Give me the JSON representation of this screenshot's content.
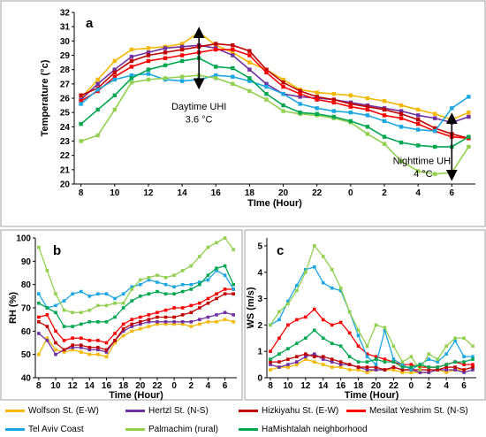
{
  "chart_data": [
    {
      "panel": "a",
      "type": "line",
      "ylabel": "Temperature (°c)",
      "xlabel": "TIme (Hour)",
      "ylim": [
        20,
        32
      ],
      "yticks": [
        20,
        21,
        22,
        23,
        24,
        25,
        26,
        27,
        28,
        29,
        30,
        31,
        32
      ],
      "xtick_labels": [
        "8",
        "10",
        "12",
        "14",
        "16",
        "18",
        "20",
        "22",
        "0",
        "2",
        "4",
        "6"
      ],
      "x": [
        8,
        9,
        10,
        11,
        12,
        13,
        14,
        15,
        16,
        17,
        18,
        19,
        20,
        21,
        22,
        23,
        24,
        25,
        26,
        27,
        28,
        29,
        30,
        31
      ],
      "annotations": [
        {
          "text": "Daytime UHI",
          "x": 15,
          "y": 25.2
        },
        {
          "text": "3.6 °C",
          "x": 15,
          "y": 24.3
        },
        {
          "text": "Nighttime UHI",
          "x": 28.3,
          "y": 21.4
        },
        {
          "text": "4 °C",
          "x": 28.3,
          "y": 20.5
        }
      ],
      "arrows": [
        {
          "x": 15,
          "y1": 27.0,
          "y2": 30.6
        },
        {
          "x": 30,
          "y1": 20.6,
          "y2": 24.6
        }
      ],
      "series": [
        {
          "name": "Wolfson St. (E-W)",
          "color": "#f5b800",
          "values": [
            26.0,
            27.3,
            28.6,
            29.4,
            29.5,
            29.6,
            29.8,
            30.6,
            29.7,
            29.2,
            28.5,
            28.0,
            27.3,
            26.6,
            26.4,
            26.3,
            26.2,
            26.0,
            25.8,
            25.5,
            25.2,
            24.9,
            24.5,
            25.0
          ]
        },
        {
          "name": "Hertzl St. (N-S)",
          "color": "#7030a0",
          "values": [
            25.9,
            27.0,
            28.0,
            28.9,
            29.2,
            29.5,
            29.6,
            29.7,
            29.5,
            29.0,
            28.0,
            27.0,
            26.3,
            26.1,
            26.0,
            25.9,
            25.7,
            25.5,
            25.3,
            25.1,
            24.8,
            24.6,
            24.3,
            24.7
          ]
        },
        {
          "name": "Hizkiyahu St. (E-W)",
          "color": "#c00000",
          "values": [
            26.2,
            26.7,
            27.8,
            28.6,
            29.0,
            29.2,
            29.4,
            29.6,
            29.8,
            29.7,
            29.3,
            28.0,
            27.1,
            26.5,
            26.1,
            25.9,
            25.6,
            25.4,
            25.2,
            24.9,
            24.5,
            23.9,
            23.5,
            23.2
          ]
        },
        {
          "name": "Mesilat Yeshrim St. (N-S)",
          "color": "#ff0000",
          "values": [
            25.8,
            26.5,
            27.5,
            28.2,
            28.6,
            28.8,
            29.0,
            29.2,
            29.4,
            29.4,
            29.0,
            27.8,
            26.8,
            26.3,
            25.9,
            25.7,
            25.4,
            25.2,
            24.8,
            24.6,
            24.2,
            23.7,
            23.3,
            23.2
          ]
        },
        {
          "name": "Tel Aviv Coast",
          "color": "#1da7e0",
          "values": [
            25.6,
            26.6,
            27.3,
            27.6,
            27.7,
            27.3,
            27.2,
            27.3,
            27.6,
            27.5,
            27.2,
            26.8,
            26.3,
            25.6,
            25.3,
            25.1,
            25.0,
            24.8,
            24.4,
            24.0,
            23.8,
            23.7,
            25.3,
            26.1
          ]
        },
        {
          "name": "Palmachim (rural)",
          "color": "#92d050",
          "values": [
            23.0,
            23.4,
            25.2,
            27.1,
            27.3,
            27.4,
            27.5,
            27.6,
            27.4,
            27.0,
            26.5,
            25.9,
            25.1,
            24.9,
            24.8,
            24.6,
            24.3,
            23.5,
            22.8,
            21.6,
            20.9,
            20.7,
            20.8,
            22.6
          ]
        },
        {
          "name": "HaMishtalah neighborhood",
          "color": "#00a650",
          "values": [
            24.2,
            25.2,
            26.2,
            27.4,
            28.0,
            28.3,
            28.6,
            28.8,
            28.2,
            28.1,
            27.4,
            26.3,
            25.5,
            25.0,
            24.9,
            24.7,
            24.4,
            24.0,
            23.3,
            22.9,
            22.7,
            22.6,
            22.6,
            23.3
          ]
        }
      ]
    },
    {
      "panel": "b",
      "type": "line",
      "ylabel": "RH (%)",
      "xlabel": "Time (Hour)",
      "ylim": [
        40,
        100
      ],
      "yticks": [
        40,
        50,
        60,
        70,
        80,
        90,
        100
      ],
      "xtick_labels": [
        "8",
        "10",
        "12",
        "14",
        "16",
        "18",
        "20",
        "22",
        "0",
        "2",
        "4",
        "6"
      ],
      "x": [
        8,
        9,
        10,
        11,
        12,
        13,
        14,
        15,
        16,
        17,
        18,
        19,
        20,
        21,
        22,
        23,
        24,
        25,
        26,
        27,
        28,
        29,
        30,
        31
      ],
      "series": [
        {
          "name": "Wolfson St. (E-W)",
          "color": "#f5b800",
          "values": [
            50,
            57,
            52,
            51,
            52,
            51,
            50,
            50,
            49,
            55,
            58,
            60,
            61,
            62,
            63,
            63,
            63,
            63,
            62,
            63,
            64,
            64,
            65,
            64
          ]
        },
        {
          "name": "Hertzl St. (N-S)",
          "color": "#7030a0",
          "values": [
            59,
            56,
            50,
            52,
            53,
            53,
            52,
            52,
            51,
            56,
            60,
            62,
            63,
            64,
            64,
            64,
            64,
            64,
            64,
            65,
            66,
            67,
            68,
            67
          ]
        },
        {
          "name": "Hizkiyahu St. (E-W)",
          "color": "#c00000",
          "values": [
            64,
            62,
            55,
            52,
            54,
            54,
            53,
            53,
            52,
            56,
            61,
            63,
            64,
            65,
            66,
            66,
            66,
            67,
            68,
            70,
            72,
            74,
            76,
            76
          ]
        },
        {
          "name": "Mesilat Yeshrim St. (N-S)",
          "color": "#ff0000",
          "values": [
            66,
            67,
            60,
            56,
            57,
            57,
            56,
            56,
            55,
            59,
            63,
            65,
            66,
            67,
            68,
            69,
            70,
            70,
            71,
            72,
            74,
            76,
            78,
            78
          ]
        },
        {
          "name": "Tel Aviv Coast",
          "color": "#1da7e0",
          "values": [
            76,
            70,
            71,
            73,
            76,
            77,
            75,
            76,
            76,
            74,
            76,
            79,
            80,
            82,
            81,
            80,
            79,
            80,
            80,
            81,
            82,
            86,
            84,
            78
          ]
        },
        {
          "name": "Palmachim (rural)",
          "color": "#92d050",
          "values": [
            96,
            86,
            76,
            69,
            68,
            68,
            69,
            71,
            71,
            72,
            72,
            78,
            82,
            83,
            84,
            83,
            84,
            86,
            88,
            92,
            96,
            98,
            100,
            95
          ]
        },
        {
          "name": "HaMishtalah neighborhood",
          "color": "#00a650",
          "values": [
            72,
            70,
            68,
            62,
            62,
            63,
            64,
            64,
            64,
            66,
            70,
            73,
            75,
            76,
            77,
            76,
            76,
            77,
            78,
            80,
            84,
            87,
            88,
            80
          ]
        }
      ]
    },
    {
      "panel": "c",
      "type": "line",
      "ylabel": "WS (m/s)",
      "xlabel": "Time (Hour)",
      "ylim": [
        0,
        5.3
      ],
      "yticks": [
        0,
        1,
        2,
        3,
        4,
        5
      ],
      "xtick_labels": [
        "8",
        "10",
        "12",
        "14",
        "16",
        "18",
        "20",
        "22",
        "0",
        "2",
        "4",
        "6"
      ],
      "x": [
        8,
        9,
        10,
        11,
        12,
        13,
        14,
        15,
        16,
        17,
        18,
        19,
        20,
        21,
        22,
        23,
        24,
        25,
        26,
        27,
        28,
        29,
        30,
        31
      ],
      "series": [
        {
          "name": "Wolfson St. (E-W)",
          "color": "#f5b800",
          "values": [
            0.3,
            0.4,
            0.4,
            0.5,
            0.7,
            0.6,
            0.5,
            0.4,
            0.4,
            0.3,
            0.3,
            0.2,
            0.3,
            0.3,
            0.3,
            0.2,
            0.2,
            0.2,
            0.2,
            0.3,
            0.2,
            0.3,
            0.3,
            0.4
          ]
        },
        {
          "name": "Hertzl St. (N-S)",
          "color": "#7030a0",
          "values": [
            0.5,
            0.4,
            0.5,
            0.6,
            0.8,
            0.9,
            0.7,
            0.6,
            0.5,
            0.5,
            0.4,
            0.3,
            0.3,
            0.3,
            0.4,
            0.3,
            0.3,
            0.2,
            0.2,
            0.3,
            0.3,
            0.3,
            0.2,
            0.3
          ]
        },
        {
          "name": "Hizkiyahu St. (E-W)",
          "color": "#c00000",
          "values": [
            0.6,
            0.6,
            0.7,
            0.8,
            0.9,
            0.8,
            0.8,
            0.7,
            0.6,
            0.5,
            0.4,
            0.4,
            0.4,
            0.3,
            0.4,
            0.3,
            0.3,
            0.3,
            0.3,
            0.3,
            0.4,
            0.4,
            0.3,
            0.4
          ]
        },
        {
          "name": "Mesilat Yeshrim St. (N-S)",
          "color": "#ff0000",
          "values": [
            1.0,
            1.5,
            2.0,
            2.2,
            2.3,
            2.6,
            2.2,
            2.0,
            2.1,
            1.7,
            1.2,
            0.9,
            0.8,
            0.7,
            0.6,
            0.5,
            0.5,
            0.4,
            0.4,
            0.4,
            0.5,
            0.6,
            0.5,
            0.5
          ]
        },
        {
          "name": "Tel Aviv Coast",
          "color": "#1da7e0",
          "values": [
            2.0,
            2.2,
            2.9,
            3.5,
            4.1,
            4.2,
            3.6,
            3.4,
            3.3,
            2.5,
            1.6,
            0.8,
            0.5,
            1.8,
            0.7,
            0.5,
            0.3,
            0.5,
            0.7,
            0.6,
            0.9,
            1.4,
            0.8,
            0.8
          ]
        },
        {
          "name": "Palmachim (rural)",
          "color": "#92d050",
          "values": [
            2.0,
            2.5,
            2.8,
            3.3,
            4.0,
            5.0,
            4.6,
            4.1,
            3.4,
            2.5,
            1.8,
            1.2,
            2.0,
            1.9,
            1.2,
            0.6,
            0.8,
            0.3,
            0.9,
            0.7,
            1.2,
            1.5,
            1.5,
            1.2
          ]
        },
        {
          "name": "HaMishtalah neighborhood",
          "color": "#00a650",
          "values": [
            0.7,
            0.9,
            1.1,
            1.3,
            1.5,
            1.8,
            1.5,
            1.3,
            1.2,
            0.8,
            0.6,
            0.6,
            0.7,
            0.6,
            0.6,
            0.4,
            0.4,
            0.5,
            0.4,
            0.4,
            0.5,
            0.6,
            0.6,
            0.7
          ]
        }
      ]
    }
  ],
  "legend": [
    {
      "label": "Wolfson St. (E-W)",
      "color": "#f5b800"
    },
    {
      "label": "Hertzl St. (N-S)",
      "color": "#7030a0"
    },
    {
      "label": "Hizkiyahu St. (E-W)",
      "color": "#c00000"
    },
    {
      "label": "Mesilat Yeshrim St. (N-S)",
      "color": "#ff0000"
    },
    {
      "label": "Tel Aviv Coast",
      "color": "#1da7e0"
    },
    {
      "label": "Palmachim (rural)",
      "color": "#92d050"
    },
    {
      "label": "HaMishtalah neighborhood",
      "color": "#00a650"
    }
  ]
}
